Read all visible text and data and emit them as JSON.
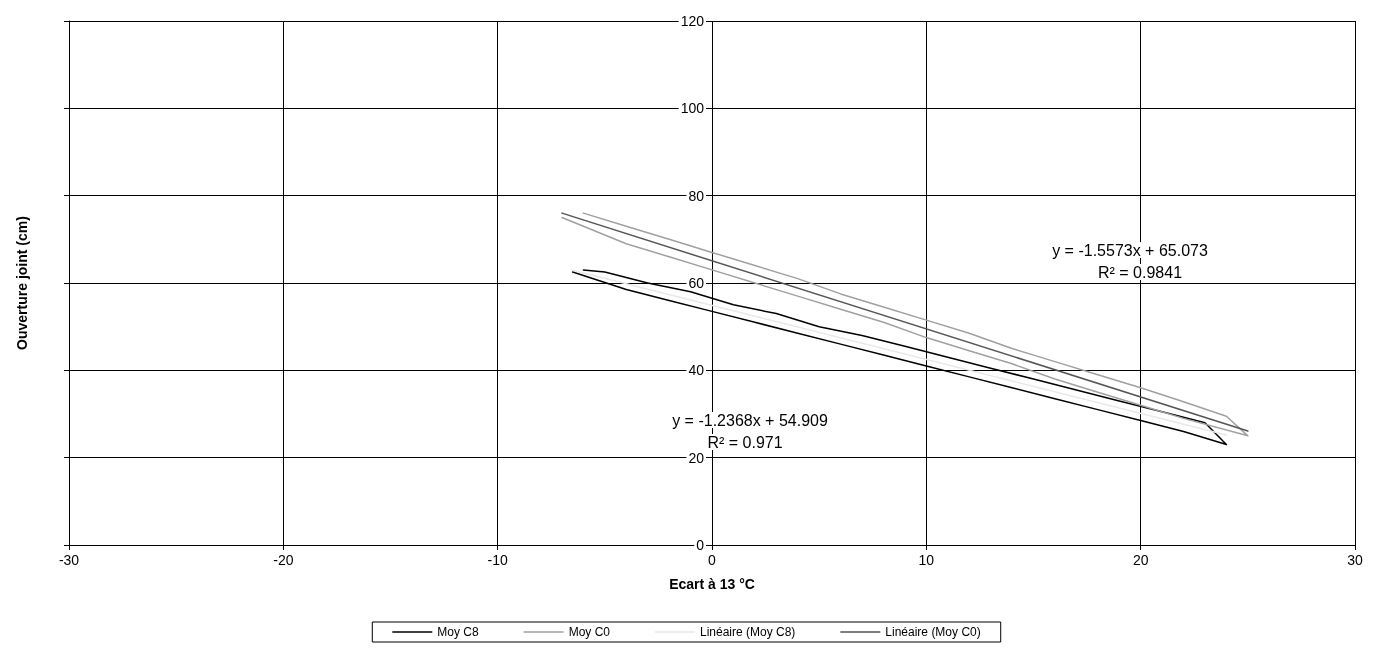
{
  "chart_data": {
    "type": "line",
    "xlabel": "Ecart à 13 °C",
    "ylabel": "Ouverture joint (cm)",
    "xlim": [
      -30,
      30
    ],
    "xticks": [
      -30,
      -20,
      -10,
      0,
      10,
      20,
      30
    ],
    "ylim": [
      0,
      120
    ],
    "yticks": [
      0,
      20,
      40,
      60,
      80,
      100,
      120
    ],
    "grid": true,
    "legend": "bottom",
    "marker": "none",
    "line_style": "solid",
    "series": [
      {
        "name": "Moy C8",
        "color": "#000000",
        "x": [
          -6.5,
          -4,
          -2,
          0,
          2,
          4,
          6,
          8,
          10,
          12,
          14,
          16,
          18,
          20,
          22,
          24,
          23,
          21,
          19,
          17,
          15,
          13,
          11,
          9,
          7,
          5,
          3,
          1,
          -1,
          -3,
          -5,
          -6
        ],
        "values": [
          62.5,
          58.5,
          56,
          53.5,
          51,
          48.5,
          46,
          43.5,
          41,
          38.5,
          36,
          33.5,
          31,
          28.5,
          26,
          23,
          28,
          30.5,
          33,
          35.5,
          38,
          40.5,
          43,
          45.5,
          48,
          50,
          53,
          55,
          58,
          60,
          62.5,
          63
        ]
      },
      {
        "name": "Moy C0",
        "color": "#a0a0a0",
        "x": [
          -7,
          -4,
          -2,
          0,
          2,
          4,
          6,
          8,
          10,
          12,
          14,
          16,
          18,
          20,
          22,
          25,
          24,
          22,
          20,
          18,
          16,
          14,
          12,
          10,
          8,
          6,
          4,
          2,
          0,
          -2,
          -4,
          -6
        ],
        "values": [
          75,
          69,
          66,
          63,
          60,
          57,
          54,
          51,
          47.5,
          44.5,
          41.5,
          38,
          35,
          32,
          29,
          25,
          29.5,
          32.8,
          36,
          39,
          42,
          45,
          48.5,
          51.5,
          54.5,
          57.5,
          61,
          64,
          67,
          70,
          73,
          76
        ]
      },
      {
        "name": "Linéaire (Moy C8)",
        "color": "#e8e8e8",
        "x": [
          -6.5,
          24
        ],
        "values": [
          62.9,
          25.2
        ]
      },
      {
        "name": "Linéaire (Moy C0)",
        "color": "#555555",
        "x": [
          -7,
          25
        ],
        "values": [
          76,
          26.1
        ]
      }
    ],
    "annotations": [
      "y = -1.5573x + 65.073",
      "R² = 0.9841",
      "y = -1.2368x + 54.909",
      "R² = 0.971"
    ]
  }
}
